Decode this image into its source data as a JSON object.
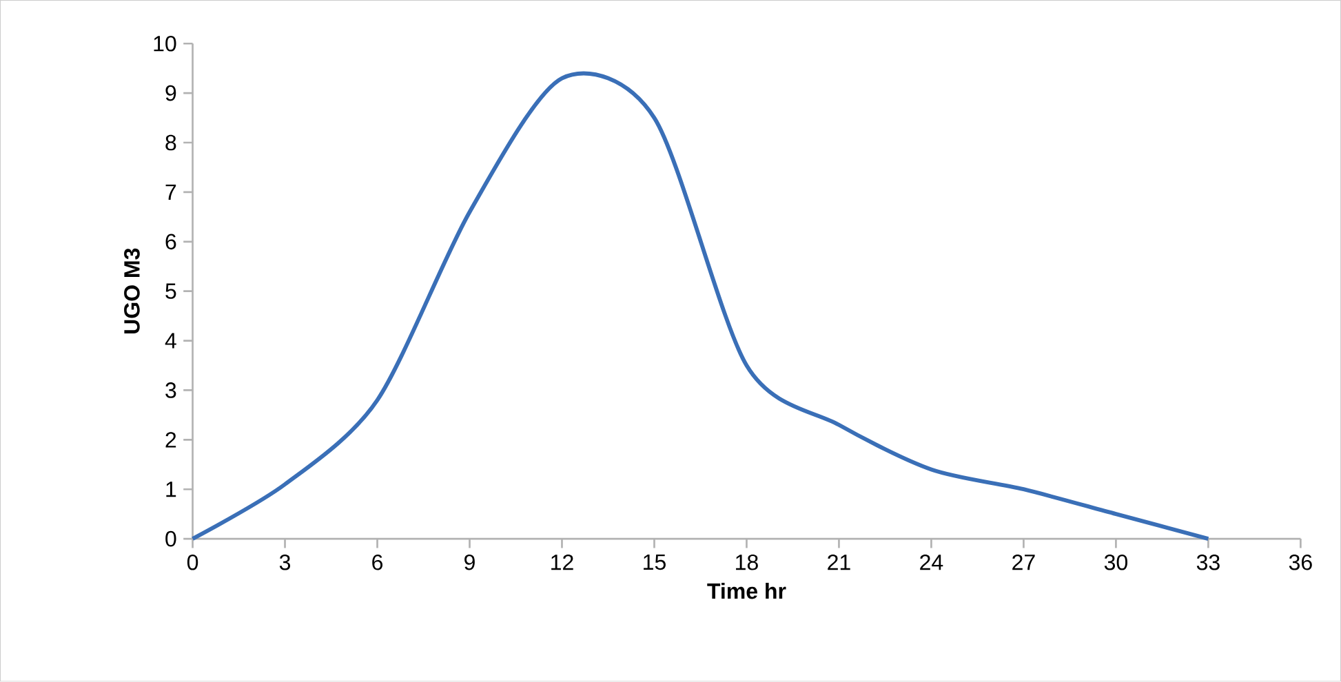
{
  "chart_data": {
    "type": "line",
    "xlabel": "Time hr",
    "ylabel": "UGO M3",
    "x": [
      0,
      3,
      6,
      9,
      12,
      15,
      18,
      21,
      24,
      27,
      30,
      33
    ],
    "series": [
      {
        "color": "#3a6fb7",
        "values": [
          0,
          1.1,
          2.8,
          6.6,
          9.3,
          8.5,
          3.5,
          2.3,
          1.4,
          1.0,
          0.5,
          0
        ]
      }
    ],
    "xlim": [
      0,
      36
    ],
    "xticks": [
      0,
      3,
      6,
      9,
      12,
      15,
      18,
      21,
      24,
      27,
      30,
      33,
      36
    ],
    "ylim": [
      0,
      10
    ],
    "yticks": [
      0,
      1,
      2,
      3,
      4,
      5,
      6,
      7,
      8,
      9,
      10
    ],
    "grid": false,
    "marker": "none",
    "line_style": "solid"
  }
}
